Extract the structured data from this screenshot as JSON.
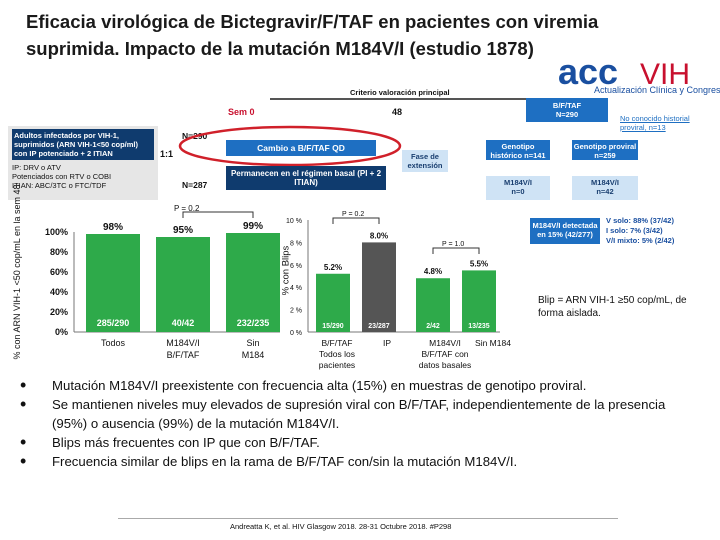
{
  "title": "Eficacia virológica de Bictegravir/F/TAF en pacientes con viremia suprimida. Impacto de la mutación M184V/I (estudio 1878)",
  "logo": {
    "brand_left": "acc",
    "brand_right": "VIH",
    "tagline": "Actualización Clínica y Congresos",
    "accent": "#1a4fa0",
    "accent_red": "#c8102e"
  },
  "diagram": {
    "criterio": "Criterio valoración principal",
    "sem0": "Sem 0",
    "sem48": "48",
    "bftaf_box": "B/F/TAF\nN=290",
    "adults_box": "Adultos infectados por VIH-1, suprimidos (ARN VIH-1<50 cop/ml) con IP potenciado + 2 ITIAN",
    "bullet1": "IP: DRV o ATV",
    "bullet2": "Potenciados con RTV o COBI",
    "bullet3": "ITIAN: ABC/3TC o FTC/TDF",
    "n290": "N=290",
    "n287": "N=287",
    "ratio": "1:1",
    "cambio": "Cambio a B/F/TAF QD",
    "permanecen": "Permanecen en el régimen basal (PI + 2 ITIAN)",
    "fase": "Fase de extensión",
    "no_conocido": "No conocido historial proviral, n=13",
    "genotipo_hist": "Genotipo histórico n=141",
    "genotipo_prov": "Genotipo proviral n=259",
    "m184_n0": "M184V/I\nn=0",
    "m184_n42": "M184V/I\nn=42",
    "m184_detectada": "M184V/I detectada en 15% (42/277)",
    "v_solo": "V solo: 88% (37/42)",
    "i_solo": "I solo: 7% (3/42)",
    "vi_mixto": "V/I mixto: 5% (2/42)"
  },
  "chart_data": [
    {
      "type": "bar",
      "ylabel": "% con ARN VIH-1 <50 cop/mL en la sem 48",
      "yticks": [
        "0%",
        "20%",
        "40%",
        "60%",
        "80%",
        "100%"
      ],
      "ylim": [
        0,
        100
      ],
      "categories": [
        "Todos",
        "M184V/I B/F/TAF",
        "Sin M184"
      ],
      "values": [
        98,
        95,
        99
      ],
      "value_labels": [
        "98%",
        "95%",
        "99%"
      ],
      "n_labels": [
        "285/290",
        "40/42",
        "232/235"
      ],
      "pvalue": "P = 0.2",
      "color": "#2eaa4a"
    },
    {
      "type": "bar",
      "ylabel": "% con Blips",
      "yticks": [
        "0 %",
        "2 %",
        "4 %",
        "6 %",
        "8 %",
        "10 %"
      ],
      "ylim": [
        0,
        10
      ],
      "categories": [
        "B/F/TAF Todos los pacientes",
        "IP",
        "M184V/I B/F/TAF con datos basales",
        "Sin M184"
      ],
      "values": [
        5.2,
        8.0,
        4.8,
        5.5
      ],
      "value_labels": [
        "5.2%",
        "8.0%",
        "4.8%",
        "5.5%"
      ],
      "n_labels": [
        "15/290",
        "23/287",
        "2/42",
        "13/235"
      ],
      "colors": [
        "#2eaa4a",
        "#555555",
        "#2eaa4a",
        "#2eaa4a"
      ],
      "pvalues": [
        "P = 0.2",
        "P = 1.0"
      ]
    }
  ],
  "blip_note": "Blip = ARN VIH-1 ≥50 cop/mL, de forma aislada.",
  "bullets": [
    "Mutación M184V/I preexistente con frecuencia alta (15%) en muestras de genotipo proviral.",
    "Se mantienen niveles muy elevados de supresión viral con B/F/TAF, independientemente de la presencia (95%) o ausencia (99%) de la mutación M184V/I.",
    "Blips más frecuentes con IP que con B/F/TAF.",
    "Frecuencia similar de blips en la rama de B/F/TAF con/sin la mutación M184V/I."
  ],
  "footnote": "Andreatta K, et al. HIV Glasgow 2018. 28-31 Octubre 2018. #P298"
}
